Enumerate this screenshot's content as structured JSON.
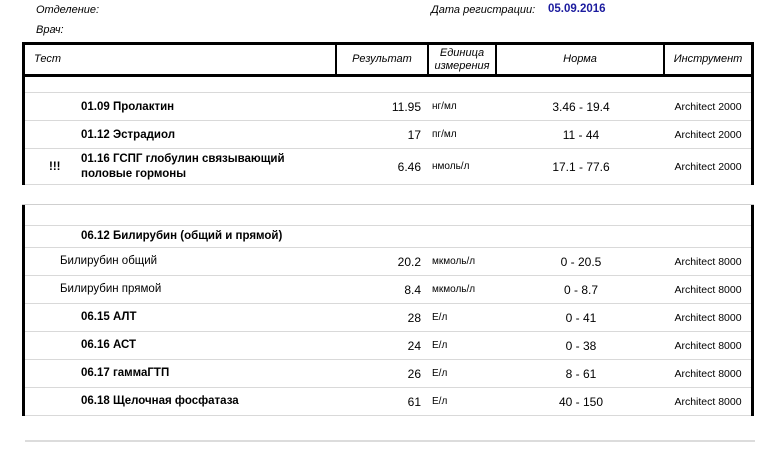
{
  "meta": {
    "department_label": "Отделение:",
    "doctor_label": "Врач:",
    "registration_date_label": "Дата регистрации:",
    "registration_date": "05.09.2016"
  },
  "colors": {
    "registration_date_text": "#1b1b9e",
    "row_separator": "#d9d9d9",
    "table_border": "#000000"
  },
  "table": {
    "headers": {
      "test": "Тест",
      "result": "Результат",
      "unit": "Единица измерения",
      "norm": "Норма",
      "instrument": "Инструмент"
    }
  },
  "sections": [
    {
      "rows": [
        {
          "flag": "",
          "style": "numbered",
          "name": "01.09 Пролактин",
          "result": "11.95",
          "unit": "нг/мл",
          "norm": "3.46 - 19.4",
          "instrument": "Architect 2000"
        },
        {
          "flag": "",
          "style": "numbered",
          "name": "01.12 Эстрадиол",
          "result": "17",
          "unit": "пг/мл",
          "norm": "11 - 44",
          "instrument": "Architect 2000"
        },
        {
          "flag": "!!!",
          "style": "numbered",
          "name": "01.16 ГСПГ глобулин связывающий\nполовые гормоны",
          "result": "6.46",
          "unit": "нмоль/л",
          "norm": "17.1 - 77.6",
          "instrument": "Architect 2000"
        }
      ]
    },
    {
      "rows": [
        {
          "flag": "",
          "style": "numbered",
          "name": "06.12 Билирубин (общий и прямой)",
          "result": "",
          "unit": "",
          "norm": "",
          "instrument": ""
        },
        {
          "flag": "",
          "style": "sub",
          "name": "Билирубин общий",
          "result": "20.2",
          "unit": "мкмоль/л",
          "norm": "0 - 20.5",
          "instrument": "Architect 8000"
        },
        {
          "flag": "",
          "style": "sub",
          "name": "Билирубин прямой",
          "result": "8.4",
          "unit": "мкмоль/л",
          "norm": "0 - 8.7",
          "instrument": "Architect 8000"
        },
        {
          "flag": "",
          "style": "numbered",
          "name": "06.15 АЛТ",
          "result": "28",
          "unit": "Е/л",
          "norm": "0 - 41",
          "instrument": "Architect 8000"
        },
        {
          "flag": "",
          "style": "numbered",
          "name": "06.16 АСТ",
          "result": "24",
          "unit": "Е/л",
          "norm": "0 - 38",
          "instrument": "Architect 8000"
        },
        {
          "flag": "",
          "style": "numbered",
          "name": "06.17 гаммаГТП",
          "result": "26",
          "unit": "Е/л",
          "norm": "8 - 61",
          "instrument": "Architect 8000"
        },
        {
          "flag": "",
          "style": "numbered",
          "name": "06.18 Щелочная фосфатаза",
          "result": "61",
          "unit": "Е/л",
          "norm": "40 - 150",
          "instrument": "Architect 8000"
        }
      ]
    }
  ]
}
